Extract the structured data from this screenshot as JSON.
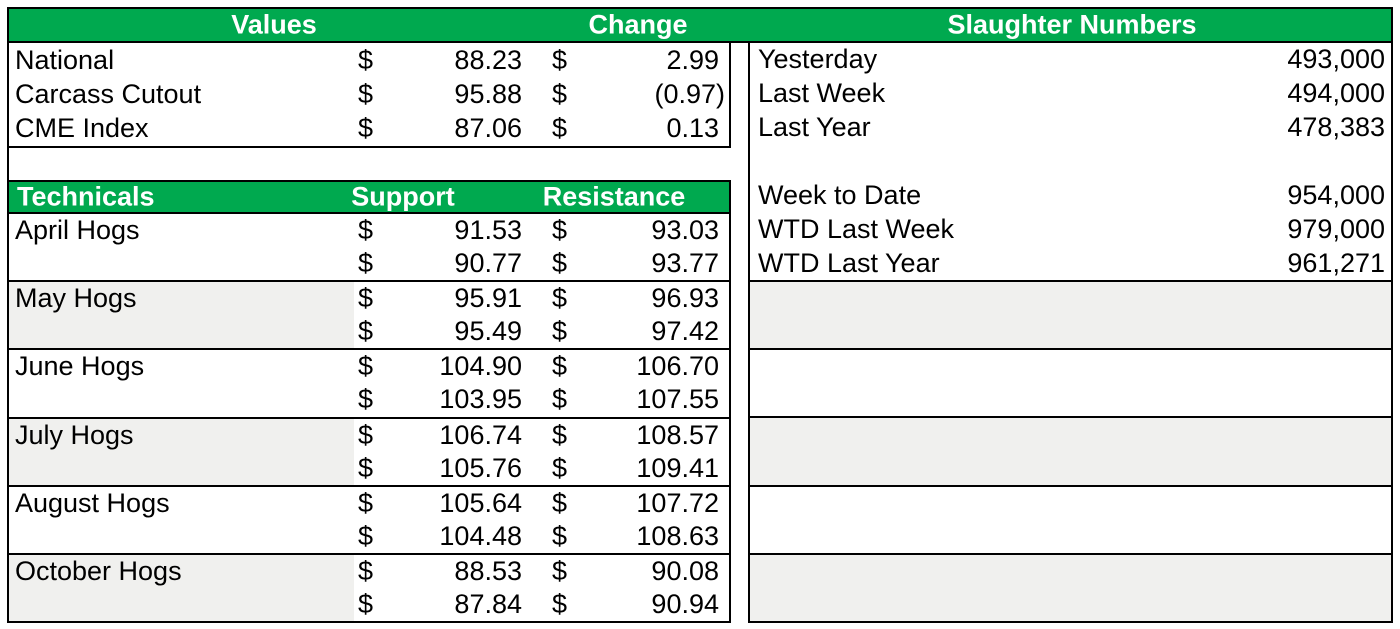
{
  "colors": {
    "accent_green": "#00A94F",
    "band_gray": "#f0f0ee",
    "border_black": "#000000",
    "header_text": "#ffffff"
  },
  "currency": "$",
  "headers": {
    "values": "Values",
    "change": "Change",
    "slaughter": "Slaughter Numbers"
  },
  "values_table": {
    "rows": [
      {
        "label": "National",
        "value": "88.23",
        "change": "2.99"
      },
      {
        "label": "Carcass Cutout",
        "value": "95.88",
        "change": "(0.97)"
      },
      {
        "label": "CME Index",
        "value": "87.06",
        "change": "0.13"
      }
    ]
  },
  "technicals": {
    "title": "Technicals",
    "support_label": "Support",
    "resistance_label": "Resistance",
    "groups": [
      {
        "label": "April Hogs",
        "shaded": false,
        "rows": [
          [
            "91.53",
            "93.03"
          ],
          [
            "90.77",
            "93.77"
          ]
        ]
      },
      {
        "label": "May Hogs",
        "shaded": true,
        "rows": [
          [
            "95.91",
            "96.93"
          ],
          [
            "95.49",
            "97.42"
          ]
        ]
      },
      {
        "label": "June Hogs",
        "shaded": false,
        "rows": [
          [
            "104.90",
            "106.70"
          ],
          [
            "103.95",
            "107.55"
          ]
        ]
      },
      {
        "label": "July Hogs",
        "shaded": true,
        "rows": [
          [
            "106.74",
            "108.57"
          ],
          [
            "105.76",
            "109.41"
          ]
        ]
      },
      {
        "label": "August Hogs",
        "shaded": false,
        "rows": [
          [
            "105.64",
            "107.72"
          ],
          [
            "104.48",
            "108.63"
          ]
        ]
      },
      {
        "label": "October Hogs",
        "shaded": true,
        "rows": [
          [
            "88.53",
            "90.08"
          ],
          [
            "87.84",
            "90.94"
          ]
        ]
      }
    ]
  },
  "slaughter_table": {
    "rows": [
      {
        "label": "Yesterday",
        "value": "493,000"
      },
      {
        "label": "Last Week",
        "value": "494,000"
      },
      {
        "label": "Last Year",
        "value": "478,383"
      },
      {
        "label": "",
        "value": ""
      },
      {
        "label": "Week to Date",
        "value": "954,000"
      },
      {
        "label": "WTD Last Week",
        "value": "979,000"
      },
      {
        "label": "WTD Last Year",
        "value": "961,271"
      }
    ]
  }
}
